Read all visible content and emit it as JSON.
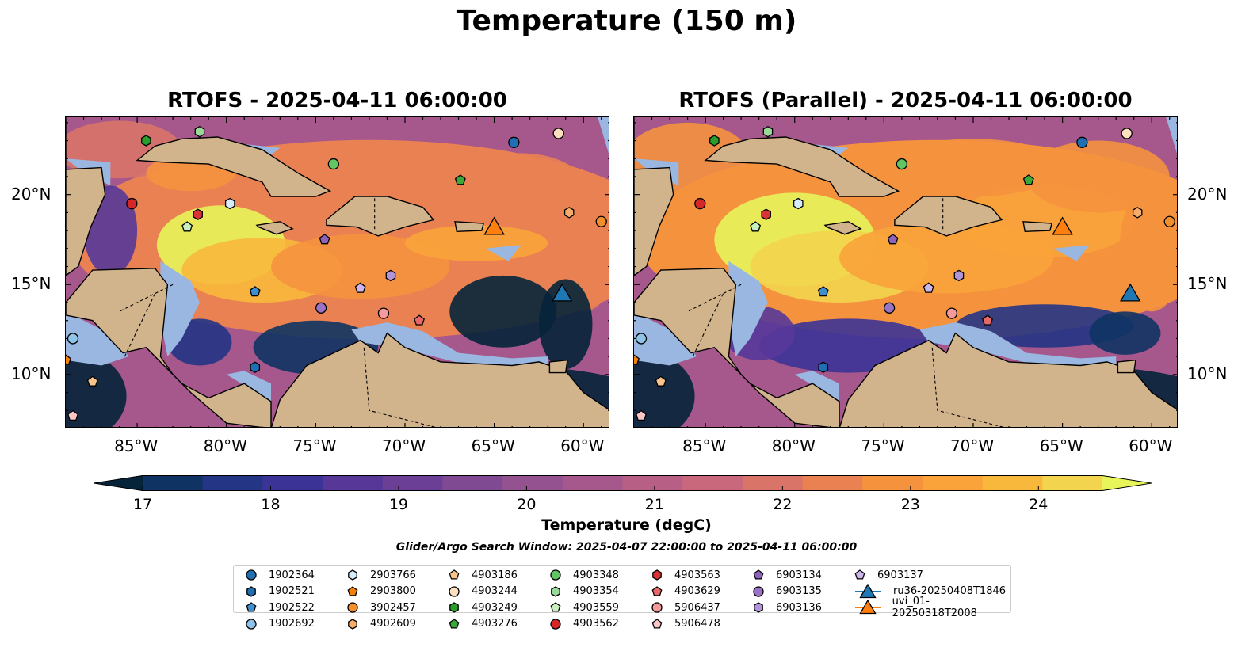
{
  "suptitle": "Temperature (150 m)",
  "panels": [
    {
      "title": "RTOFS - 2025-04-11 06:00:00"
    },
    {
      "title": "RTOFS (Parallel) - 2025-04-11 06:00:00"
    }
  ],
  "axes": {
    "lon_labels": [
      "85°W",
      "80°W",
      "75°W",
      "70°W",
      "65°W",
      "60°W"
    ],
    "lat_labels": [
      "20°N",
      "15°N",
      "10°N"
    ]
  },
  "colorbar": {
    "label": "Temperature (degC)",
    "ticks": [
      "17",
      "18",
      "19",
      "20",
      "21",
      "22",
      "23",
      "24"
    ],
    "range": [
      17,
      24.5
    ],
    "colors": [
      "#05243a",
      "#0f3463",
      "#243585",
      "#3c3396",
      "#573899",
      "#6b3f96",
      "#7f4a92",
      "#945291",
      "#a6588c",
      "#b85f86",
      "#c9687c",
      "#d97469",
      "#ea8152",
      "#f5923e",
      "#f9a33a",
      "#f8b83c",
      "#f3d44e",
      "#e7f45a"
    ]
  },
  "search_window": "Glider/Argo Search Window: 2025-04-07 22:00:00 to 2025-04-11 06:00:00",
  "colors": {
    "land": "#d2b48c",
    "shelf": "#99b7e0",
    "deep_cold": "#05243a",
    "warm": "#e7f45a"
  },
  "legend": [
    {
      "label": "1902364",
      "color": "#1f6fb2",
      "marker": "circle"
    },
    {
      "label": "1902521",
      "color": "#1f6fb2",
      "marker": "hexagon"
    },
    {
      "label": "1902522",
      "color": "#3f8fd0",
      "marker": "pentagon"
    },
    {
      "label": "1902692",
      "color": "#8fc3e8",
      "marker": "circle"
    },
    {
      "label": "2903766",
      "color": "#d6ecfa",
      "marker": "hexagon"
    },
    {
      "label": "2903800",
      "color": "#f07f0e",
      "marker": "pentagon"
    },
    {
      "label": "3902457",
      "color": "#f28e2b",
      "marker": "circle"
    },
    {
      "label": "4902609",
      "color": "#f6ad6b",
      "marker": "hexagon"
    },
    {
      "label": "4903186",
      "color": "#f9c38c",
      "marker": "pentagon"
    },
    {
      "label": "4903244",
      "color": "#fde0c0",
      "marker": "circle"
    },
    {
      "label": "4903249",
      "color": "#2a9d2a",
      "marker": "hexagon"
    },
    {
      "label": "4903276",
      "color": "#3aa83a",
      "marker": "pentagon"
    },
    {
      "label": "4903348",
      "color": "#62c462",
      "marker": "circle"
    },
    {
      "label": "4903354",
      "color": "#9ad99a",
      "marker": "hexagon"
    },
    {
      "label": "4903559",
      "color": "#c8f0c0",
      "marker": "pentagon"
    },
    {
      "label": "4903562",
      "color": "#d62728",
      "marker": "circle"
    },
    {
      "label": "4903563",
      "color": "#d93436",
      "marker": "hexagon"
    },
    {
      "label": "4903629",
      "color": "#e8686a",
      "marker": "pentagon"
    },
    {
      "label": "5906437",
      "color": "#f49a9b",
      "marker": "circle"
    },
    {
      "label": "5906478",
      "color": "#fbc6c6",
      "marker": "pentagon"
    },
    {
      "label": "6903134",
      "color": "#8e64b8",
      "marker": "pentagon"
    },
    {
      "label": "6903135",
      "color": "#9a73c4",
      "marker": "circle"
    },
    {
      "label": "6903136",
      "color": "#b294d8",
      "marker": "hexagon"
    },
    {
      "label": "6903137",
      "color": "#cdb6ea",
      "marker": "pentagon"
    },
    {
      "label": "ru36-20250408T1846",
      "color": "#1f77b4",
      "marker": "triangle"
    },
    {
      "label": "uvi_01-20250318T2008",
      "color": "#ff7f0e",
      "marker": "triangle"
    }
  ],
  "observations": [
    {
      "id": "1902364",
      "lon": -63.9,
      "lat": 22.9
    },
    {
      "id": "1902521",
      "lon": -78.4,
      "lat": 10.4
    },
    {
      "id": "1902522",
      "lon": -78.4,
      "lat": 14.6
    },
    {
      "id": "1902692",
      "lon": -88.6,
      "lat": 12.0
    },
    {
      "id": "2903766",
      "lon": -79.8,
      "lat": 19.5
    },
    {
      "id": "2903800",
      "lon": -89.0,
      "lat": 10.8
    },
    {
      "id": "3902457",
      "lon": -59.0,
      "lat": 18.5
    },
    {
      "id": "4902609",
      "lon": -60.8,
      "lat": 19.0
    },
    {
      "id": "4903186",
      "lon": -87.5,
      "lat": 9.6
    },
    {
      "id": "4903244",
      "lon": -61.4,
      "lat": 23.4
    },
    {
      "id": "4903249",
      "lon": -84.5,
      "lat": 23.0
    },
    {
      "id": "4903276",
      "lon": -66.9,
      "lat": 20.8
    },
    {
      "id": "4903348",
      "lon": -74.0,
      "lat": 21.7
    },
    {
      "id": "4903354",
      "lon": -81.5,
      "lat": 23.5
    },
    {
      "id": "4903559",
      "lon": -82.2,
      "lat": 18.2
    },
    {
      "id": "4903562",
      "lon": -85.3,
      "lat": 19.5
    },
    {
      "id": "4903563",
      "lon": -81.6,
      "lat": 18.9
    },
    {
      "id": "4903629",
      "lon": -69.2,
      "lat": 13.0
    },
    {
      "id": "5906437",
      "lon": -71.2,
      "lat": 13.4
    },
    {
      "id": "5906478",
      "lon": -88.6,
      "lat": 7.7
    },
    {
      "id": "6903134",
      "lon": -74.5,
      "lat": 17.5
    },
    {
      "id": "6903135",
      "lon": -74.7,
      "lat": 13.7
    },
    {
      "id": "6903136",
      "lon": -70.8,
      "lat": 15.5
    },
    {
      "id": "6903137",
      "lon": -72.5,
      "lat": 14.8
    },
    {
      "id": "ru36-20250408T1846",
      "lon": -61.2,
      "lat": 14.4
    },
    {
      "id": "uvi_01-20250318T2008",
      "lon": -65.0,
      "lat": 18.1
    }
  ]
}
